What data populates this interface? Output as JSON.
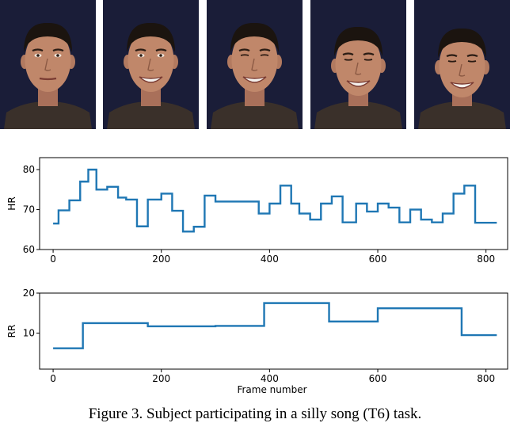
{
  "photos": [
    {
      "label": "neutral face"
    },
    {
      "label": "smiling face"
    },
    {
      "label": "laughing face with squinted eyes"
    },
    {
      "label": "smiling face looking down"
    },
    {
      "label": "laughing face looking down"
    }
  ],
  "colors": {
    "series": "#1f77b4",
    "backdrop": "#1a1d38",
    "skin": "#c0876a",
    "hair": "#1b140f",
    "shirt": "#3a302a"
  },
  "chart_data": [
    {
      "type": "line",
      "ylabel": "HR",
      "xlabel": "",
      "xlim": [
        -25,
        840
      ],
      "ylim": [
        60,
        83
      ],
      "xticks": [
        "0",
        "200",
        "400",
        "600",
        "800"
      ],
      "yticks": [
        "60",
        "70",
        "80"
      ],
      "xtick_values": [
        0,
        200,
        400,
        600,
        800
      ],
      "ytick_values": [
        60,
        70,
        80
      ],
      "step": true,
      "x": [
        0,
        10,
        30,
        50,
        65,
        80,
        100,
        120,
        135,
        155,
        175,
        200,
        220,
        240,
        260,
        280,
        300,
        320,
        340,
        360,
        380,
        400,
        420,
        440,
        455,
        475,
        495,
        515,
        535,
        560,
        580,
        600,
        620,
        640,
        660,
        680,
        700,
        720,
        740,
        760,
        780,
        800,
        820
      ],
      "y": [
        66.5,
        69.8,
        72.3,
        77,
        80,
        75,
        75.7,
        73,
        72.5,
        65.8,
        72.5,
        74,
        69.7,
        64.5,
        65.7,
        73.5,
        72,
        72,
        72,
        72,
        69,
        71.5,
        76,
        71.5,
        69,
        67.5,
        71.5,
        73.3,
        66.8,
        71.5,
        69.5,
        71.5,
        70.5,
        66.8,
        70,
        67.5,
        66.8,
        69,
        74,
        76,
        66.7,
        66.7,
        66.7
      ]
    },
    {
      "type": "line",
      "ylabel": "RR",
      "xlabel": "Frame number",
      "xlim": [
        -25,
        840
      ],
      "ylim": [
        1,
        20
      ],
      "xticks": [
        "0",
        "200",
        "400",
        "600",
        "800"
      ],
      "yticks": [
        "10",
        "20"
      ],
      "xtick_values": [
        0,
        200,
        400,
        600,
        800
      ],
      "ytick_values": [
        10,
        20
      ],
      "step": true,
      "x": [
        0,
        55,
        175,
        300,
        390,
        510,
        600,
        755,
        820
      ],
      "y": [
        6.2,
        12.5,
        11.7,
        11.8,
        17.5,
        12.9,
        16.2,
        9.5,
        9.5
      ]
    }
  ],
  "caption": "Figure 3. Subject participating in a silly song (T6) task."
}
